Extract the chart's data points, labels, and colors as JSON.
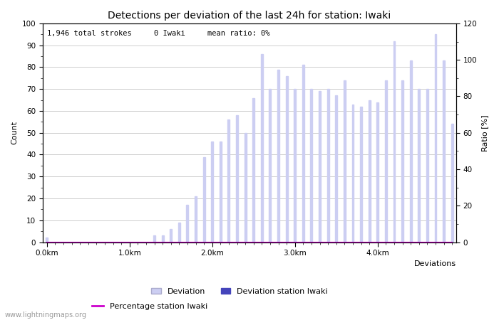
{
  "title": "Detections per deviation of the last 24h for station: Iwaki",
  "subtitle": "1,946 total strokes     0 Iwaki     mean ratio: 0%",
  "xlabel": "Deviations",
  "ylabel_left": "Count",
  "ylabel_right": "Ratio [%]",
  "xlim": [
    -0.5,
    49.5
  ],
  "ylim_left": [
    0,
    100
  ],
  "ylim_right": [
    0,
    120
  ],
  "yticks_left": [
    0,
    10,
    20,
    30,
    40,
    50,
    60,
    70,
    80,
    90,
    100
  ],
  "yticks_right": [
    0,
    20,
    40,
    60,
    80,
    100,
    120
  ],
  "xtick_positions": [
    0,
    10,
    20,
    30,
    40
  ],
  "xtick_labels": [
    "0.0km",
    "1.0km",
    "2.0km",
    "3.0km",
    "4.0km"
  ],
  "bar_values": [
    2,
    0,
    0,
    0,
    0,
    0,
    0,
    0,
    0,
    0,
    0,
    0,
    0,
    3,
    3,
    6,
    9,
    17,
    21,
    39,
    46,
    46,
    56,
    58,
    50,
    66,
    86,
    70,
    79,
    76,
    70,
    81,
    70,
    69,
    70,
    67,
    74,
    63,
    62,
    65,
    64,
    74,
    92,
    74,
    83,
    70,
    70,
    95,
    83,
    54
  ],
  "station_bar_values": [
    0,
    0,
    0,
    0,
    0,
    0,
    0,
    0,
    0,
    0,
    0,
    0,
    0,
    0,
    0,
    0,
    0,
    0,
    0,
    0,
    0,
    0,
    0,
    0,
    0,
    0,
    0,
    0,
    0,
    0,
    0,
    0,
    0,
    0,
    0,
    0,
    0,
    0,
    0,
    0,
    0,
    0,
    0,
    0,
    0,
    0,
    0,
    0,
    0,
    0
  ],
  "percentage_values": [
    0,
    0,
    0,
    0,
    0,
    0,
    0,
    0,
    0,
    0,
    0,
    0,
    0,
    0,
    0,
    0,
    0,
    0,
    0,
    0,
    0,
    0,
    0,
    0,
    0,
    0,
    0,
    0,
    0,
    0,
    0,
    0,
    0,
    0,
    0,
    0,
    0,
    0,
    0,
    0,
    0,
    0,
    0,
    0,
    0,
    0,
    0,
    0,
    0,
    0
  ],
  "bar_color": "#cccef2",
  "station_bar_color": "#4444bb",
  "percentage_color": "#cc00cc",
  "grid_color": "#bbbbbb",
  "bg_color": "#ffffff",
  "watermark": "www.lightningmaps.org",
  "legend_items": [
    {
      "label": "Deviation",
      "color": "#cccef2",
      "type": "bar"
    },
    {
      "label": "Deviation station Iwaki",
      "color": "#4444bb",
      "type": "bar"
    },
    {
      "label": "Percentage station Iwaki",
      "color": "#cc00cc",
      "type": "line"
    }
  ],
  "title_fontsize": 10,
  "subtitle_fontsize": 7.5,
  "axis_fontsize": 8,
  "tick_fontsize": 7.5,
  "watermark_fontsize": 7,
  "bar_width": 0.25
}
